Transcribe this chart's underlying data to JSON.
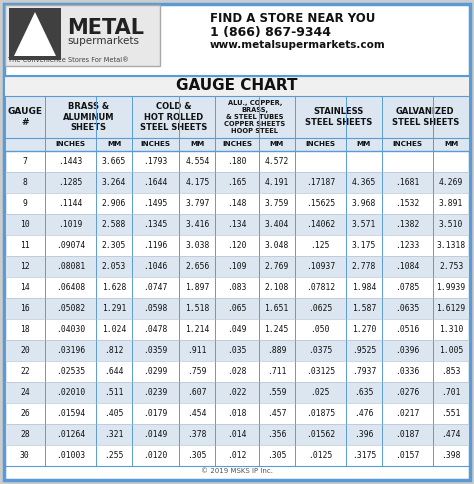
{
  "title": "GAUGE CHART",
  "contact_line1": "FIND A STORE NEAR YOU",
  "contact_line2": "1 (866) 867-9344",
  "contact_line3": "www.metalsupermarkets.com",
  "logo_tagline": "The Convenience Stores For Metal®",
  "copyright": "© 2019 MSKS IP Inc.",
  "rows": [
    [
      "7",
      ".1443",
      "3.665",
      ".1793",
      "4.554",
      ".180",
      "4.572",
      "",
      "",
      "",
      ""
    ],
    [
      "8",
      ".1285",
      "3.264",
      ".1644",
      "4.175",
      ".165",
      "4.191",
      ".17187",
      "4.365",
      ".1681",
      "4.269"
    ],
    [
      "9",
      ".1144",
      "2.906",
      ".1495",
      "3.797",
      ".148",
      "3.759",
      ".15625",
      "3.968",
      ".1532",
      "3.891"
    ],
    [
      "10",
      ".1019",
      "2.588",
      ".1345",
      "3.416",
      ".134",
      "3.404",
      ".14062",
      "3.571",
      ".1382",
      "3.510"
    ],
    [
      "11",
      ".09074",
      "2.305",
      ".1196",
      "3.038",
      ".120",
      "3.048",
      ".125",
      "3.175",
      ".1233",
      "3.1318"
    ],
    [
      "12",
      ".08081",
      "2.053",
      ".1046",
      "2.656",
      ".109",
      "2.769",
      ".10937",
      "2.778",
      ".1084",
      "2.753"
    ],
    [
      "14",
      ".06408",
      "1.628",
      ".0747",
      "1.897",
      ".083",
      "2.108",
      ".07812",
      "1.984",
      ".0785",
      "1.9939"
    ],
    [
      "16",
      ".05082",
      "1.291",
      ".0598",
      "1.518",
      ".065",
      "1.651",
      ".0625",
      "1.587",
      ".0635",
      "1.6129"
    ],
    [
      "18",
      ".04030",
      "1.024",
      ".0478",
      "1.214",
      ".049",
      "1.245",
      ".050",
      "1.270",
      ".0516",
      "1.310"
    ],
    [
      "20",
      ".03196",
      ".812",
      ".0359",
      ".911",
      ".035",
      ".889",
      ".0375",
      ".9525",
      ".0396",
      "1.005"
    ],
    [
      "22",
      ".02535",
      ".644",
      ".0299",
      ".759",
      ".028",
      ".711",
      ".03125",
      ".7937",
      ".0336",
      ".853"
    ],
    [
      "24",
      ".02010",
      ".511",
      ".0239",
      ".607",
      ".022",
      ".559",
      ".025",
      ".635",
      ".0276",
      ".701"
    ],
    [
      "26",
      ".01594",
      ".405",
      ".0179",
      ".454",
      ".018",
      ".457",
      ".01875",
      ".476",
      ".0217",
      ".551"
    ],
    [
      "28",
      ".01264",
      ".321",
      ".0149",
      ".378",
      ".014",
      ".356",
      ".01562",
      ".396",
      ".0187",
      ".474"
    ],
    [
      "30",
      ".01003",
      ".255",
      ".0120",
      ".305",
      ".012",
      ".305",
      ".0125",
      ".3175",
      ".0157",
      ".398"
    ]
  ],
  "col_widths_rel": [
    5.0,
    6.5,
    4.5,
    6.0,
    4.5,
    5.5,
    4.5,
    6.5,
    4.5,
    6.5,
    4.5
  ],
  "outer_border_color": "#5b9bd5",
  "header_sep_color": "#5b9bd5",
  "col_line_color": "#5b9bd5",
  "row_line_color": "#aab8cc",
  "alt_row_color": "#dce6f1",
  "header_bg_color": "#dce6f1",
  "title_bg_color": "#f2f2f2",
  "white": "#ffffff",
  "logo_box_bg": "#e8e8e8",
  "logo_dark_bg": "#404040",
  "text_dark": "#111111",
  "text_gray": "#555555"
}
